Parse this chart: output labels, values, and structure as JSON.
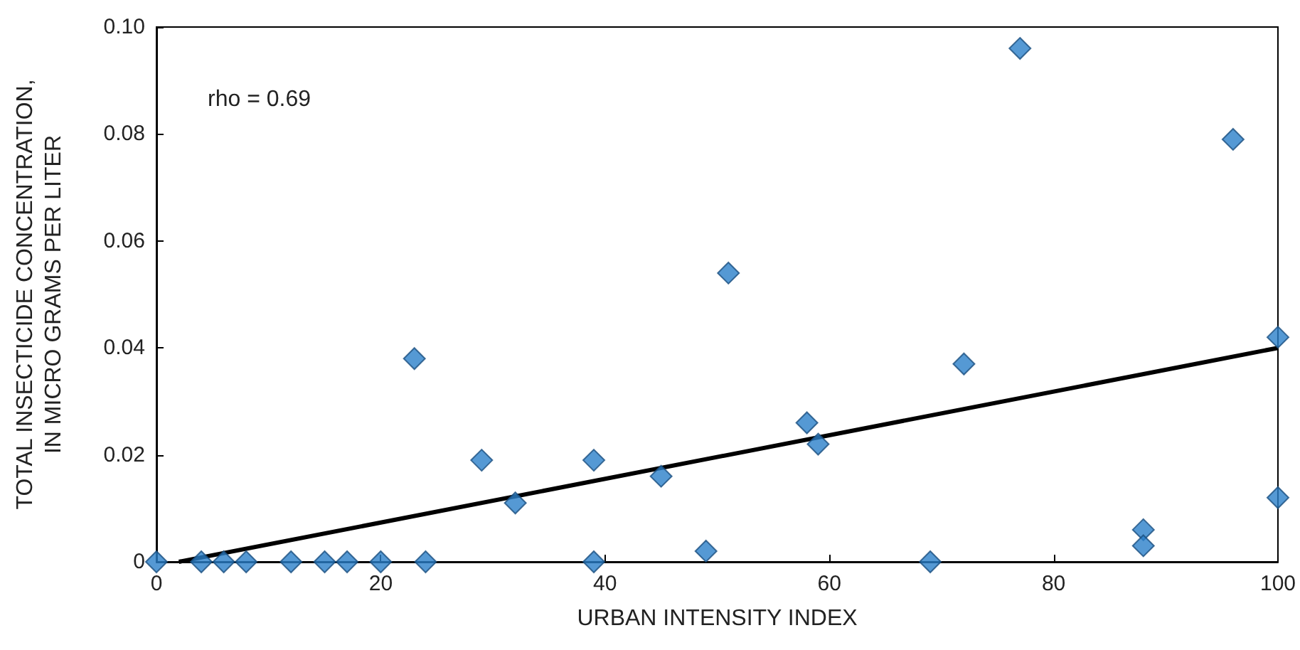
{
  "chart_data": {
    "type": "scatter",
    "xlabel": "URBAN INTENSITY INDEX",
    "ylabel": "TOTAL INSECTICIDE CONCENTRATION,\nIN MICRO GRAMS PER LITER",
    "annotations": [
      "rho = 0.69"
    ],
    "xlim": [
      0,
      100
    ],
    "xticks": [
      0,
      20,
      40,
      60,
      80,
      100
    ],
    "ylim": [
      0,
      0.1
    ],
    "yticks": [
      0,
      0.02,
      0.04,
      0.06,
      0.08,
      {
        "value": 0.1,
        "label": "0.10"
      }
    ],
    "grid": false,
    "series": [
      {
        "color": "#2a7fc9",
        "marker": "diamond",
        "x": [
          0,
          4,
          6,
          8,
          12,
          15,
          17,
          20,
          24,
          23,
          29,
          32,
          39,
          39,
          45,
          49,
          51,
          58,
          59,
          69,
          72,
          77,
          88,
          88,
          96,
          100,
          100
        ],
        "values": [
          0,
          0,
          0,
          0,
          0,
          0,
          0,
          0,
          0,
          0.038,
          0.019,
          0.011,
          0.019,
          0,
          0.016,
          0.002,
          0.054,
          0.026,
          0.022,
          0,
          0.037,
          0.096,
          0.006,
          0.003,
          0.079,
          0.042,
          0.012
        ]
      },
      {
        "type": "line",
        "color": "#000000",
        "marker": "none",
        "x": [
          2,
          100
        ],
        "values": [
          0,
          0.04
        ]
      }
    ]
  }
}
